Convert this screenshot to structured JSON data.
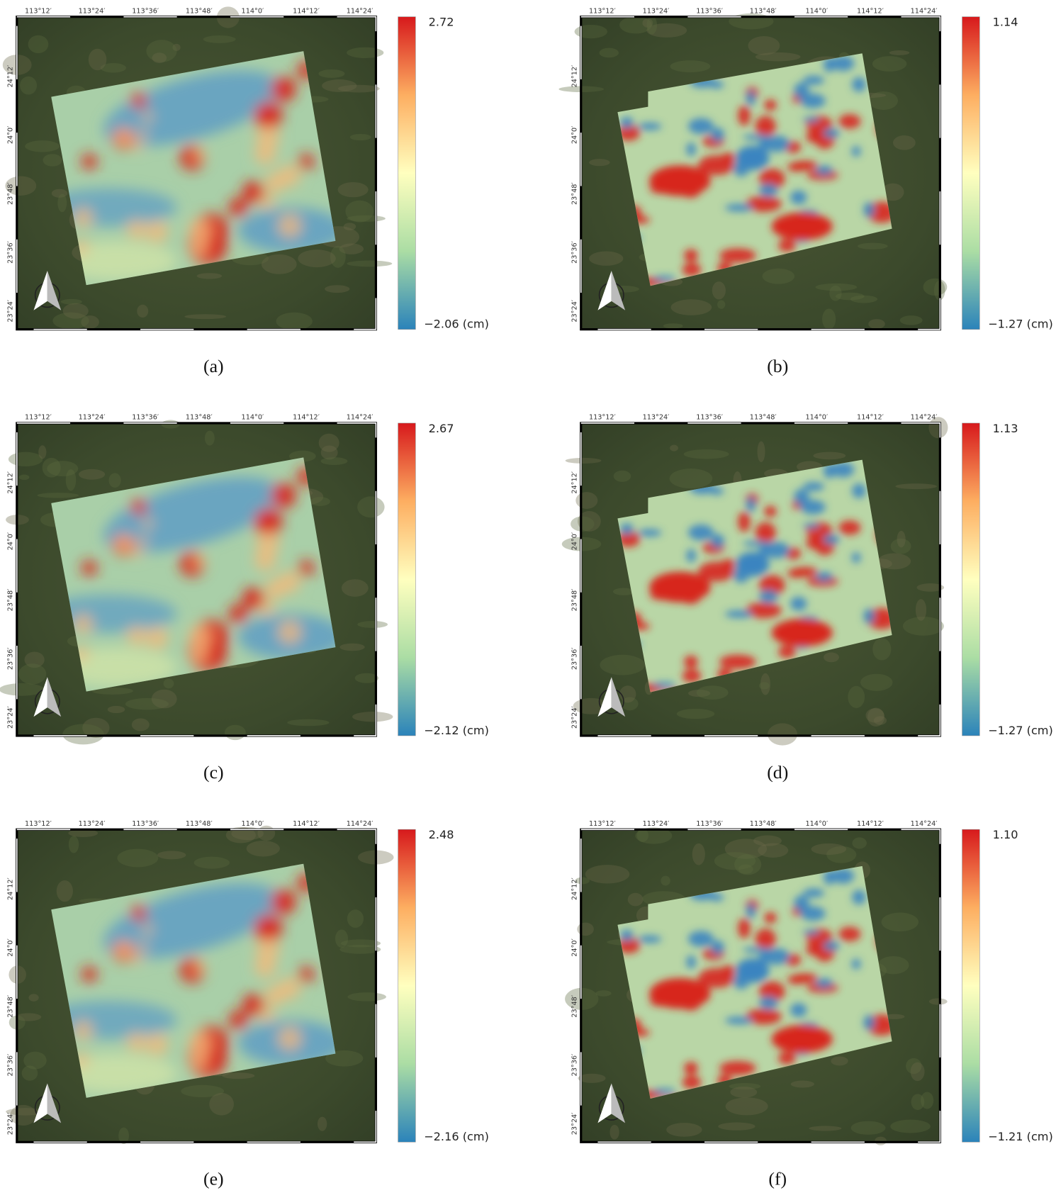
{
  "x_ticks": [
    "113°12′",
    "113°24′",
    "113°36′",
    "113°48′",
    "114°0′",
    "114°12′",
    "114°24′"
  ],
  "y_ticks": [
    "24°12′",
    "24°0′",
    "23°48′",
    "23°36′",
    "23°24′"
  ],
  "panels": [
    {
      "label": "(a)",
      "colorbar": {
        "max": "2.72",
        "min": "−2.06 (cm)"
      }
    },
    {
      "label": "(b)",
      "colorbar": {
        "max": "1.14",
        "min": "−1.27 (cm)"
      }
    },
    {
      "label": "(c)",
      "colorbar": {
        "max": "2.67",
        "min": "−2.12 (cm)"
      }
    },
    {
      "label": "(d)",
      "colorbar": {
        "max": "1.13",
        "min": "−1.27 (cm)"
      }
    },
    {
      "label": "(e)",
      "colorbar": {
        "max": "2.48",
        "min": "−2.16 (cm)"
      }
    },
    {
      "label": "(f)",
      "colorbar": {
        "max": "1.10",
        "min": "−1.21 (cm)"
      }
    }
  ]
}
